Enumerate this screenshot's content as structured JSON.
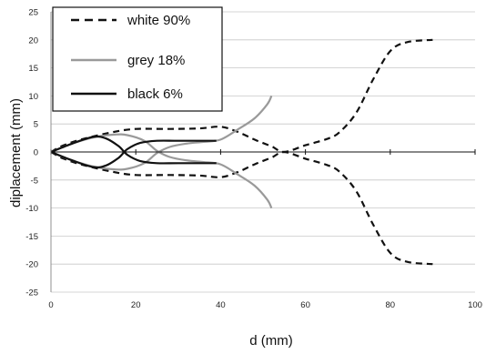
{
  "chart_data": {
    "type": "line",
    "xlabel": "d (mm)",
    "ylabel": "diplacement (mm)",
    "xlim": [
      0,
      100
    ],
    "ylim": [
      -25,
      25
    ],
    "xticks": [
      0,
      20,
      40,
      60,
      80,
      100
    ],
    "yticks": [
      -25,
      -20,
      -15,
      -10,
      -5,
      0,
      5,
      10,
      15,
      20,
      25
    ],
    "grid": "horizontal",
    "legend": "top-left",
    "series": [
      {
        "name": "white 90%",
        "color": "#111111",
        "style": "dashed",
        "branches": [
          [
            [
              0,
              0
            ],
            [
              3,
              1.2
            ],
            [
              8,
              2.4
            ],
            [
              15,
              3.6
            ],
            [
              20,
              4.1
            ],
            [
              28,
              4.1
            ],
            [
              35,
              4.2
            ],
            [
              40,
              4.5
            ],
            [
              44,
              3.6
            ],
            [
              48,
              2.2
            ],
            [
              52,
              1.0
            ],
            [
              55,
              0
            ],
            [
              60,
              1.2
            ],
            [
              65,
              2.3
            ],
            [
              68,
              3.5
            ],
            [
              72,
              7
            ],
            [
              76,
              13
            ],
            [
              80,
              18
            ],
            [
              84,
              19.6
            ],
            [
              90,
              20
            ]
          ],
          [
            [
              0,
              0
            ],
            [
              3,
              -1.2
            ],
            [
              8,
              -2.4
            ],
            [
              15,
              -3.6
            ],
            [
              20,
              -4.1
            ],
            [
              28,
              -4.1
            ],
            [
              35,
              -4.2
            ],
            [
              40,
              -4.5
            ],
            [
              44,
              -3.6
            ],
            [
              48,
              -2.2
            ],
            [
              52,
              -1.0
            ],
            [
              55,
              0
            ],
            [
              60,
              -1.2
            ],
            [
              65,
              -2.3
            ],
            [
              68,
              -3.5
            ],
            [
              72,
              -7
            ],
            [
              76,
              -13
            ],
            [
              80,
              -18
            ],
            [
              84,
              -19.6
            ],
            [
              90,
              -20
            ]
          ]
        ]
      },
      {
        "name": "grey 18%",
        "color": "#9a9a9a",
        "style": "solid",
        "branches": [
          [
            [
              0,
              0
            ],
            [
              5,
              1.5
            ],
            [
              10,
              2.6
            ],
            [
              15,
              3.1
            ],
            [
              18,
              3.0
            ],
            [
              22,
              2.0
            ],
            [
              25,
              0.2
            ],
            [
              28,
              -0.9
            ],
            [
              32,
              -1.5
            ],
            [
              36,
              -1.8
            ],
            [
              40,
              -2.2
            ],
            [
              44,
              -4.0
            ],
            [
              48,
              -6.0
            ],
            [
              51,
              -8.5
            ],
            [
              52,
              -10
            ]
          ],
          [
            [
              0,
              0
            ],
            [
              5,
              -1.5
            ],
            [
              10,
              -2.6
            ],
            [
              15,
              -3.1
            ],
            [
              18,
              -3.0
            ],
            [
              22,
              -2.0
            ],
            [
              25,
              -0.2
            ],
            [
              28,
              0.9
            ],
            [
              32,
              1.5
            ],
            [
              36,
              1.8
            ],
            [
              40,
              2.2
            ],
            [
              44,
              4.0
            ],
            [
              48,
              6.0
            ],
            [
              51,
              8.5
            ],
            [
              52,
              10
            ]
          ]
        ]
      },
      {
        "name": "black 6%",
        "color": "#111111",
        "style": "solid",
        "branches": [
          [
            [
              0,
              0
            ],
            [
              5,
              1.5
            ],
            [
              10,
              2.7
            ],
            [
              13,
              2.4
            ],
            [
              16,
              1.0
            ],
            [
              18,
              -0.5
            ],
            [
              21,
              -1.6
            ],
            [
              25,
              -2.0
            ],
            [
              30,
              -2.0
            ],
            [
              39,
              -2.0
            ]
          ],
          [
            [
              0,
              0
            ],
            [
              5,
              -1.5
            ],
            [
              10,
              -2.7
            ],
            [
              13,
              -2.4
            ],
            [
              16,
              -1.0
            ],
            [
              18,
              0.5
            ],
            [
              21,
              1.6
            ],
            [
              25,
              2.0
            ],
            [
              30,
              2.0
            ],
            [
              39,
              2.0
            ]
          ]
        ]
      }
    ]
  }
}
